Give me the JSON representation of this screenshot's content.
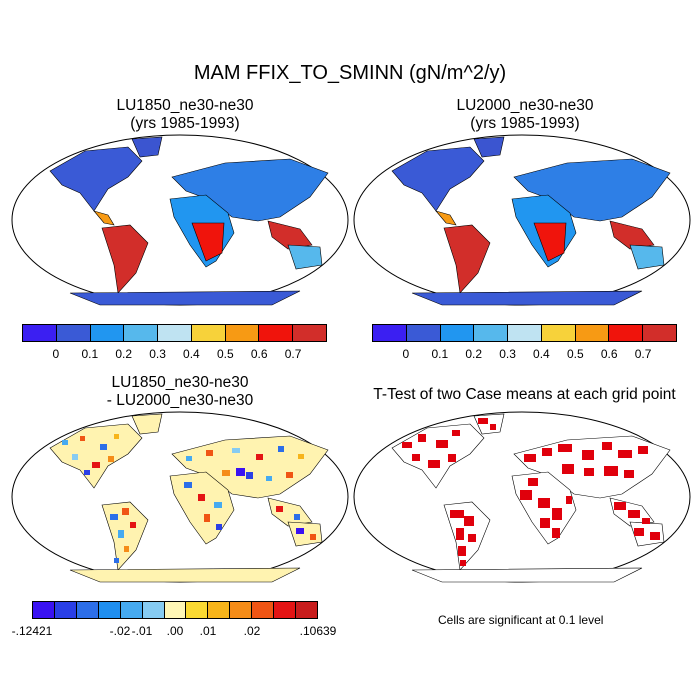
{
  "title": "MAM FFIX_TO_SMINN (gN/m^2/y)",
  "panels": [
    {
      "title_line1": "LU1850_ne30-ne30",
      "title_line2": "(yrs 1985-1993)"
    },
    {
      "title_line1": "LU2000_ne30-ne30",
      "title_line2": "(yrs 1985-1993)"
    },
    {
      "title_line1": "LU1850_ne30-ne30",
      "title_line2": "- LU2000_ne30-ne30"
    },
    {
      "title_line1": "T-Test of two Case means at each grid point",
      "title_line2": ""
    }
  ],
  "colorbar_main": {
    "colors": [
      "#3b1ff2",
      "#3a5ad6",
      "#2196f0",
      "#56b8ec",
      "#bfe3f2",
      "#f7d23a",
      "#f79a14",
      "#f0140c",
      "#d22e2a"
    ],
    "labels": [
      "0",
      "0.1",
      "0.2",
      "0.3",
      "0.4",
      "0.5",
      "0.6",
      "0.7"
    ]
  },
  "colorbar_diff": {
    "colors": [
      "#3a12f2",
      "#2a3fe6",
      "#2c6ee8",
      "#1f8ff0",
      "#46aaf0",
      "#86cbf2",
      "#fef6b6",
      "#fad932",
      "#f7b41a",
      "#f58c18",
      "#f05514",
      "#e41414",
      "#c81c1c"
    ],
    "labels": [
      "-.12421",
      "-.02",
      "-.01",
      ".00",
      ".01",
      ".02",
      ".10639"
    ]
  },
  "note": "Cells are significant at 0.1 level",
  "fills": {
    "ocean": "#ffffff",
    "diff_land": "#fff3b0",
    "ttest_mark": "#e0000c"
  }
}
